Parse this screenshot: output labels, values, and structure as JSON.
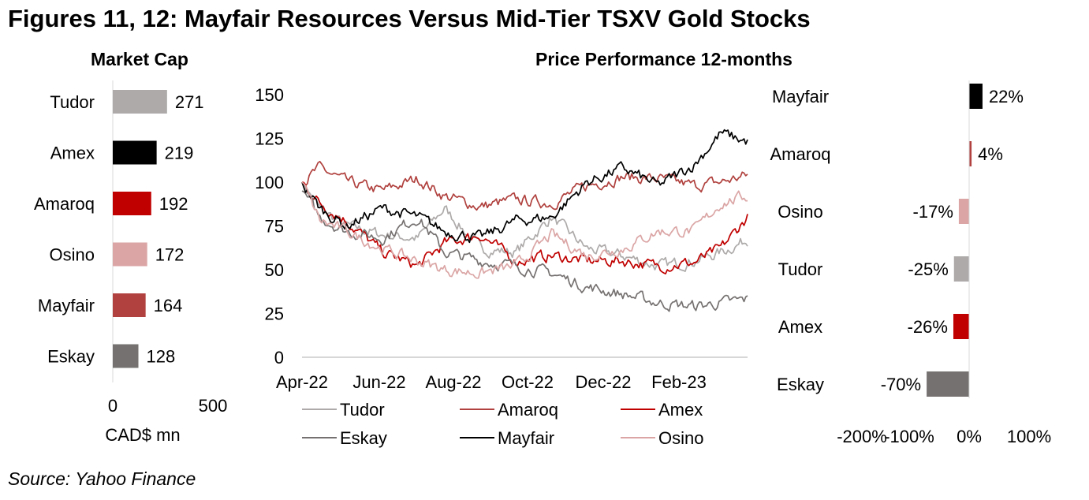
{
  "title": "Figures 11, 12: Mayfair Resources Versus Mid-Tier TSXV Gold Stocks",
  "source": "Source: Yahoo Finance",
  "chart_data": [
    {
      "type": "bar",
      "orientation": "horizontal",
      "title": "Market Cap",
      "xlabel": "CAD$ mn",
      "xlim": [
        0,
        500
      ],
      "xticks": [
        "0",
        "500"
      ],
      "categories": [
        "Tudor",
        "Amex",
        "Amaroq",
        "Osino",
        "Mayfair",
        "Eskay"
      ],
      "values": [
        271,
        219,
        192,
        172,
        164,
        128
      ],
      "labels": [
        "271",
        "219",
        "192",
        "172",
        "164",
        "128"
      ],
      "colors": [
        "#aeaaaa",
        "#000000",
        "#c00000",
        "#dba5a5",
        "#b0413e",
        "#767171"
      ]
    },
    {
      "type": "line",
      "title": "Price Performance 12-months",
      "x_ticks": [
        "Apr-22",
        "Jun-22",
        "Aug-22",
        "Oct-22",
        "Dec-22",
        "Feb-23"
      ],
      "y_ticks": [
        "0",
        "25",
        "50",
        "75",
        "100",
        "125",
        "150"
      ],
      "ylim": [
        0,
        150
      ],
      "n_points": 250,
      "anchors_index": [
        0,
        10,
        25,
        45,
        65,
        80,
        100,
        120,
        140,
        160,
        180,
        200,
        220,
        235,
        250
      ],
      "series": [
        {
          "name": "Tudor",
          "color": "#aeaaaa",
          "values": [
            100,
            85,
            75,
            70,
            68,
            85,
            62,
            60,
            80,
            62,
            58,
            52,
            55,
            60,
            67
          ]
        },
        {
          "name": "Amaroq",
          "color": "#b0413e",
          "values": [
            100,
            108,
            100,
            95,
            102,
            92,
            86,
            90,
            88,
            98,
            103,
            102,
            98,
            100,
            104
          ]
        },
        {
          "name": "Amex",
          "color": "#c00000",
          "values": [
            100,
            88,
            78,
            60,
            52,
            65,
            70,
            55,
            58,
            55,
            55,
            52,
            54,
            62,
            80
          ]
        },
        {
          "name": "Eskay",
          "color": "#767171",
          "values": [
            95,
            80,
            72,
            68,
            80,
            60,
            55,
            52,
            48,
            40,
            36,
            31,
            29,
            31,
            33
          ]
        },
        {
          "name": "Mayfair",
          "color": "#000000",
          "values": [
            100,
            85,
            75,
            85,
            80,
            72,
            68,
            78,
            80,
            100,
            108,
            98,
            110,
            128,
            123
          ]
        },
        {
          "name": "Osino",
          "color": "#dba5a5",
          "values": [
            100,
            78,
            72,
            62,
            55,
            50,
            48,
            52,
            70,
            58,
            62,
            72,
            72,
            88,
            92
          ]
        }
      ]
    },
    {
      "type": "bar",
      "orientation": "horizontal",
      "xlim": [
        -200,
        100
      ],
      "xticks": [
        "-200%",
        "-100%",
        "0%",
        "100%"
      ],
      "categories": [
        "Mayfair",
        "Amaroq",
        "Osino",
        "Tudor",
        "Amex",
        "Eskay"
      ],
      "values": [
        22,
        4,
        -17,
        -25,
        -26,
        -70
      ],
      "labels": [
        "22%",
        "4%",
        "-17%",
        "-25%",
        "-26%",
        "-70%"
      ],
      "colors": [
        "#000000",
        "#b0413e",
        "#dba5a5",
        "#aeaaaa",
        "#c00000",
        "#767171"
      ]
    }
  ]
}
